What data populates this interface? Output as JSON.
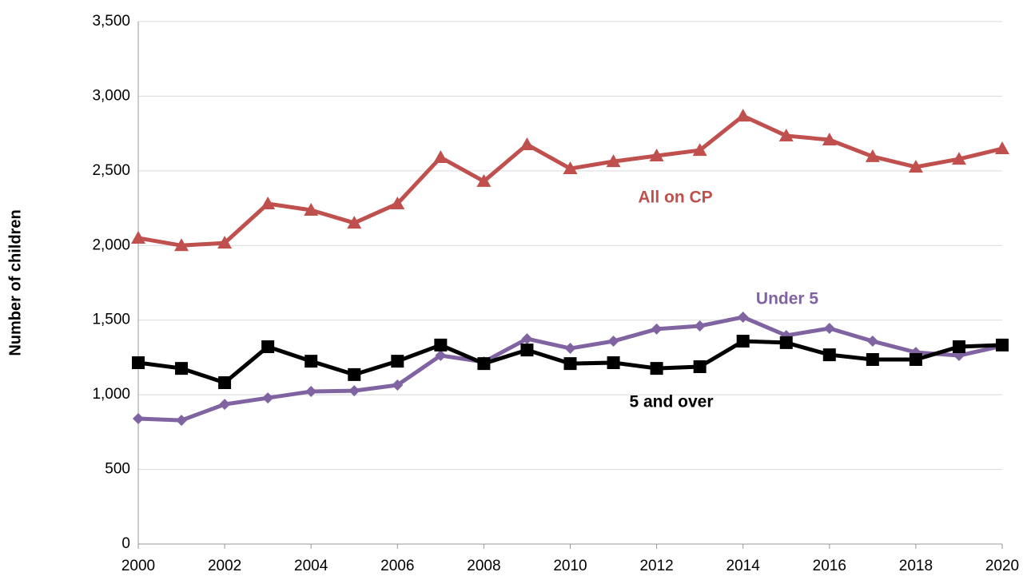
{
  "chart_data": {
    "type": "line",
    "y_label": "Number of children",
    "x": [
      2000,
      2001,
      2002,
      2003,
      2004,
      2005,
      2006,
      2007,
      2008,
      2009,
      2010,
      2011,
      2012,
      2013,
      2014,
      2015,
      2016,
      2017,
      2018,
      2019,
      2020
    ],
    "xlim": [
      2000,
      2020
    ],
    "xticks": [
      2000,
      2002,
      2004,
      2006,
      2008,
      2010,
      2012,
      2014,
      2016,
      2018,
      2020
    ],
    "ylim": [
      0,
      3500
    ],
    "yticks": [
      0,
      500,
      {
        "value": 1000,
        "label": "1,000"
      },
      {
        "value": 1500,
        "label": "1,500"
      },
      {
        "value": 2000,
        "label": "2,000"
      },
      {
        "value": 2500,
        "label": "2,500"
      },
      {
        "value": 3000,
        "label": "3,000"
      },
      {
        "value": 3500,
        "label": "3,500"
      }
    ],
    "grid": true,
    "series": [
      {
        "name": "All on CP",
        "color": "#c0504d",
        "marker": "triangle",
        "values": [
          2050,
          2000,
          2017,
          2280,
          2237,
          2151,
          2280,
          2590,
          2430,
          2676,
          2515,
          2563,
          2601,
          2638,
          2868,
          2735,
          2708,
          2596,
          2526,
          2579,
          2649
        ]
      },
      {
        "name": "Under 5",
        "color": "#8064a2",
        "marker": "diamond",
        "values": [
          840,
          829,
          936,
          979,
          1022,
          1027,
          1065,
          1263,
          1220,
          1375,
          1311,
          1359,
          1440,
          1461,
          1520,
          1397,
          1445,
          1359,
          1284,
          1263,
          1327
        ]
      },
      {
        "name": "5 and over",
        "color": "#000000",
        "marker": "square",
        "values": [
          1215,
          1177,
          1081,
          1322,
          1225,
          1135,
          1225,
          1333,
          1209,
          1300,
          1209,
          1215,
          1177,
          1188,
          1359,
          1349,
          1268,
          1236,
          1236,
          1322,
          1333
        ]
      }
    ]
  }
}
